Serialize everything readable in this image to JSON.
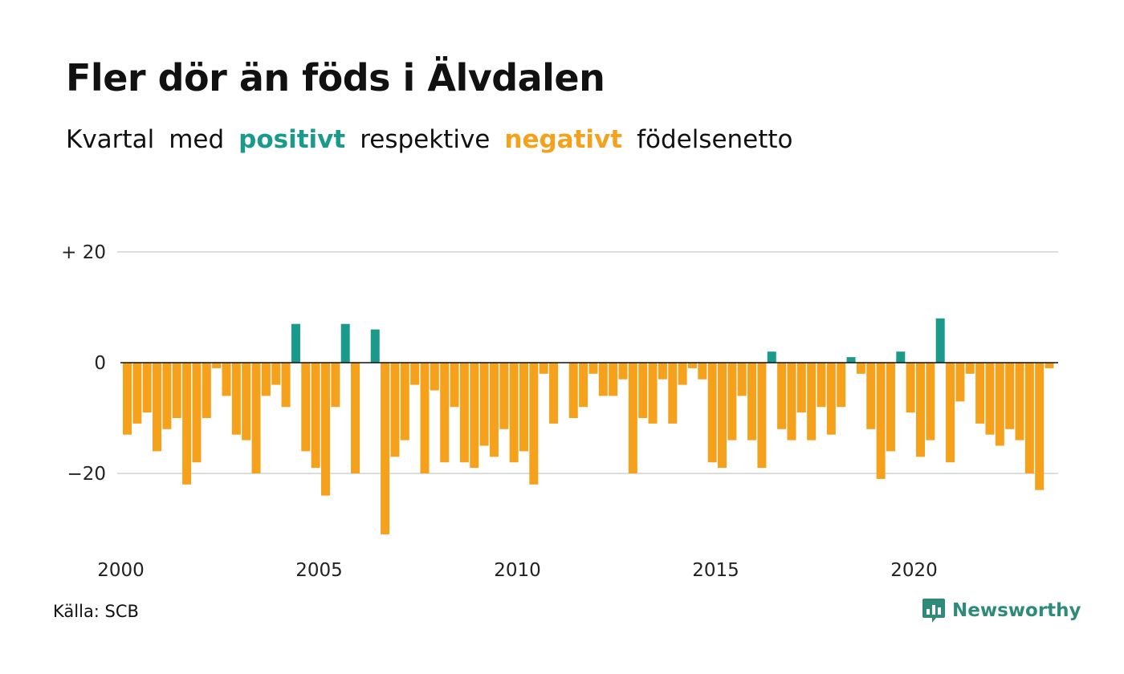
{
  "title": "Fler dör än föds i Älvdalen",
  "subtitle": {
    "prefix_1": "Kvartal",
    "prefix_2": "med",
    "positive": "positivt",
    "middle": "respektive",
    "negative": "negativt",
    "suffix": "födelsenetto"
  },
  "source": "Källa: SCB",
  "brand": {
    "name": "Newsworthy",
    "icon": "newsworthy-logo-icon"
  },
  "colors": {
    "positive": "#1a9a8a",
    "negative": "#f5a11c",
    "grid": "#dddddd",
    "baseline": "#111111"
  },
  "chart_data": {
    "type": "bar",
    "title": "Fler dör än föds i Älvdalen",
    "xlabel": "",
    "ylabel": "",
    "start_year": 2000,
    "periods_per_year": 4,
    "x_ticks": [
      "2000",
      "2005",
      "2010",
      "2015",
      "2020"
    ],
    "y_ticks": [
      {
        "value": 20,
        "label": "+ 20"
      },
      {
        "value": 0,
        "label": "0"
      },
      {
        "value": -20,
        "label": "−20"
      }
    ],
    "ylim": [
      -32,
      24
    ],
    "grid": true,
    "legend": "none",
    "series": [
      {
        "values": [
          -13,
          -11,
          -9,
          -16,
          -12,
          -10,
          -22,
          -18,
          -10,
          -1,
          -6,
          -13,
          -14,
          -20,
          -6,
          -4,
          -8,
          7,
          -16,
          -19,
          -24,
          -8,
          7,
          -20,
          0,
          6,
          -31,
          -17,
          -14,
          -4,
          -20,
          -5,
          -18,
          -8,
          -18,
          -19,
          -15,
          -17,
          -12,
          -18,
          -16,
          -22,
          -2,
          -11,
          0,
          -10,
          -8,
          -2,
          -6,
          -6,
          -3,
          -20,
          -10,
          -11,
          -3,
          -11,
          -4,
          -1,
          -3,
          -18,
          -19,
          -14,
          -6,
          -14,
          -19,
          2,
          -12,
          -14,
          -9,
          -14,
          -8,
          -13,
          -8,
          1,
          -2,
          -12,
          -21,
          -16,
          2,
          -9,
          -17,
          -14,
          8,
          -18,
          -7,
          -2,
          -11,
          -13,
          -15,
          -12,
          -14,
          -20,
          -23,
          -1
        ]
      }
    ]
  }
}
